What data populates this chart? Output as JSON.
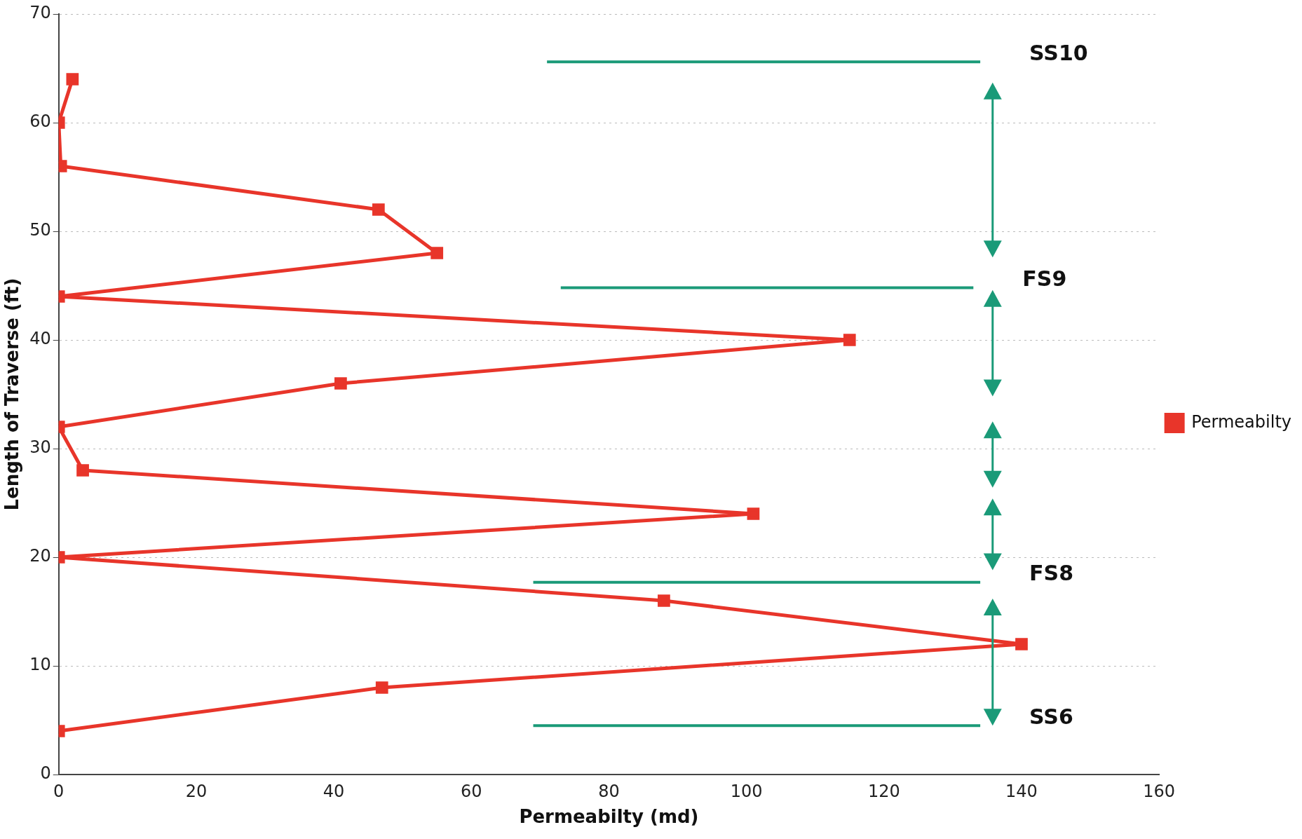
{
  "chart_data": {
    "type": "line",
    "xlabel": "Permeabilty (md)",
    "ylabel": "Length of Traverse (ft)",
    "xlim": [
      0,
      160
    ],
    "xticks": [
      0,
      20,
      40,
      60,
      80,
      100,
      120,
      140,
      160
    ],
    "ylim": [
      0,
      70
    ],
    "yticks": [
      0,
      10,
      20,
      30,
      40,
      50,
      60,
      70
    ],
    "grid": "y",
    "legend": "right",
    "marker": "square",
    "line_style": "solid",
    "series": [
      {
        "name": "Permeabilty",
        "color": "#e8352a",
        "x": [
          2,
          0,
          0.3,
          46.5,
          55,
          0,
          115,
          41,
          0,
          3.5,
          101,
          0,
          88,
          140,
          47,
          0
        ],
        "values": [
          64,
          60,
          56,
          52,
          48,
          44,
          40,
          36,
          32,
          28,
          24,
          20,
          16,
          12,
          8,
          4
        ]
      },
      {
        "type": "line",
        "marker": "none",
        "name": "SS10",
        "color": "#1a9a78",
        "x": [
          71,
          134
        ],
        "values": [
          65.6,
          65.6
        ]
      },
      {
        "type": "line",
        "marker": "none",
        "name": "FS9",
        "color": "#1a9a78",
        "x": [
          73,
          133
        ],
        "values": [
          44.8,
          44.8
        ]
      },
      {
        "type": "line",
        "marker": "none",
        "name": "FS8",
        "color": "#1a9a78",
        "x": [
          69,
          134
        ],
        "values": [
          17.7,
          17.7
        ]
      },
      {
        "type": "line",
        "marker": "none",
        "name": "SS6",
        "color": "#1a9a78",
        "x": [
          69,
          134
        ],
        "values": [
          4.5,
          4.5
        ]
      }
    ]
  }
}
